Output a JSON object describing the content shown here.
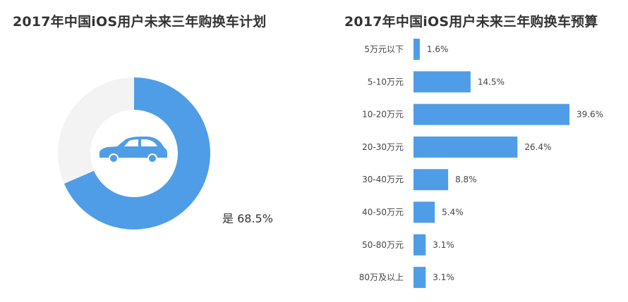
{
  "chart_data": [
    {
      "type": "pie",
      "title": "2017年中国iOS用户未来三年购换车计划",
      "slices": [
        {
          "label": "是",
          "value": 68.5,
          "color": "#4f9de6"
        },
        {
          "label": "",
          "value": 31.5,
          "color": "#f3f3f3"
        }
      ],
      "data_label": "是 68.5%",
      "center_icon": "car-icon"
    },
    {
      "type": "bar",
      "orientation": "horizontal",
      "title": "2017年中国iOS用户未来三年购换车预算",
      "categories": [
        "5万元以下",
        "5-10万元",
        "10-20万元",
        "20-30万元",
        "30-40万元",
        "40-50万元",
        "50-80万元",
        "80万及以上"
      ],
      "values": [
        1.6,
        14.5,
        39.6,
        26.4,
        8.8,
        5.4,
        3.1,
        3.1
      ],
      "value_labels": [
        "1.6%",
        "14.5%",
        "39.6%",
        "26.4%",
        "8.8%",
        "5.4%",
        "3.1%",
        "3.1%"
      ],
      "color": "#4f9de6"
    }
  ]
}
